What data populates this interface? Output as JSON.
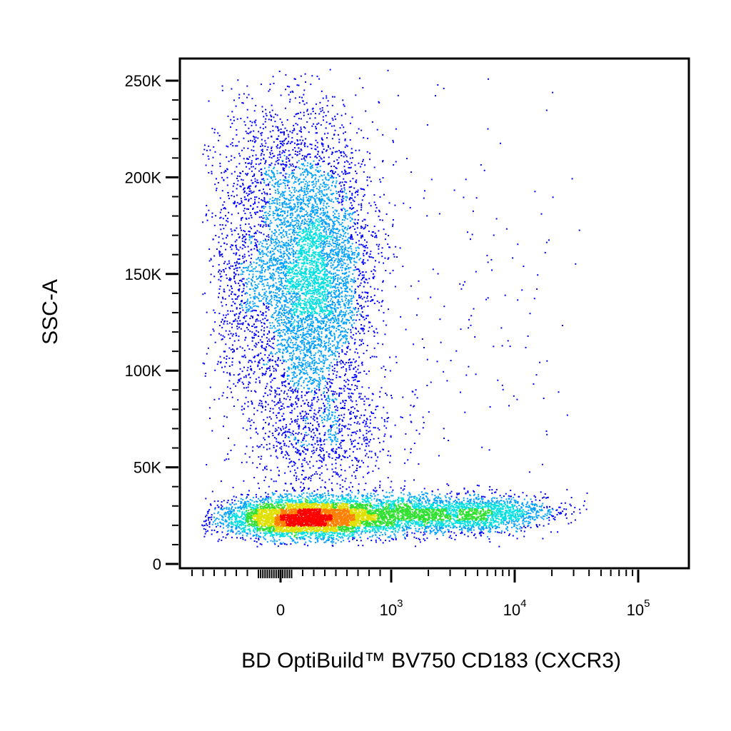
{
  "chart_data": {
    "type": "scatter",
    "title": "",
    "xlabel": "BD OptiBuild™ BV750 CD183 (CXCR3)",
    "ylabel": "SSC-A",
    "x_scale": "biexponential",
    "xlim": [
      -300,
      100000
    ],
    "ylim": [
      0,
      262144
    ],
    "x_ticks": [
      {
        "value": 0,
        "base": "0",
        "exp": ""
      },
      {
        "value": 1000,
        "base": "10",
        "exp": "3"
      },
      {
        "value": 10000,
        "base": "10",
        "exp": "4"
      },
      {
        "value": 100000,
        "base": "10",
        "exp": "5"
      }
    ],
    "y_ticks": [
      {
        "value": 0,
        "label": "0"
      },
      {
        "value": 50000,
        "label": "50K"
      },
      {
        "value": 100000,
        "label": "100K"
      },
      {
        "value": 150000,
        "label": "150K"
      },
      {
        "value": 200000,
        "label": "200K"
      },
      {
        "value": 250000,
        "label": "250K"
      }
    ],
    "colormap": [
      "#0000ff",
      "#00a0ff",
      "#00e0e0",
      "#30e030",
      "#e0e000",
      "#ff8000",
      "#ff0000"
    ],
    "populations": [
      {
        "name_shown": false,
        "description": "CXCR3-negative high SSC cluster",
        "x_center": 120,
        "y_center": 150000,
        "peak_density": "high",
        "x_range": [
          -150,
          700
        ],
        "y_range": [
          95000,
          255000
        ]
      },
      {
        "name_shown": false,
        "description": "low SSC lymphocyte band",
        "x_center": 150,
        "y_center": 25000,
        "peak_density": "highest",
        "x_range": [
          -200,
          8000
        ],
        "y_range": [
          12000,
          40000
        ]
      },
      {
        "name_shown": false,
        "description": "CXCR3-positive low SSC tail",
        "x_center": 3000,
        "y_center": 27000,
        "peak_density": "medium",
        "x_range": [
          900,
          15000
        ],
        "y_range": [
          15000,
          40000
        ]
      },
      {
        "name_shown": false,
        "description": "intermediate SSC sparse",
        "x_center": 250,
        "y_center": 60000,
        "peak_density": "low",
        "x_range": [
          -100,
          1000
        ],
        "y_range": [
          40000,
          95000
        ]
      },
      {
        "name_shown": false,
        "description": "scattered high SSC positive events",
        "x_center": 5000,
        "y_center": 150000,
        "peak_density": "very low",
        "x_range": [
          1000,
          30000
        ],
        "y_range": [
          60000,
          240000
        ]
      }
    ]
  }
}
